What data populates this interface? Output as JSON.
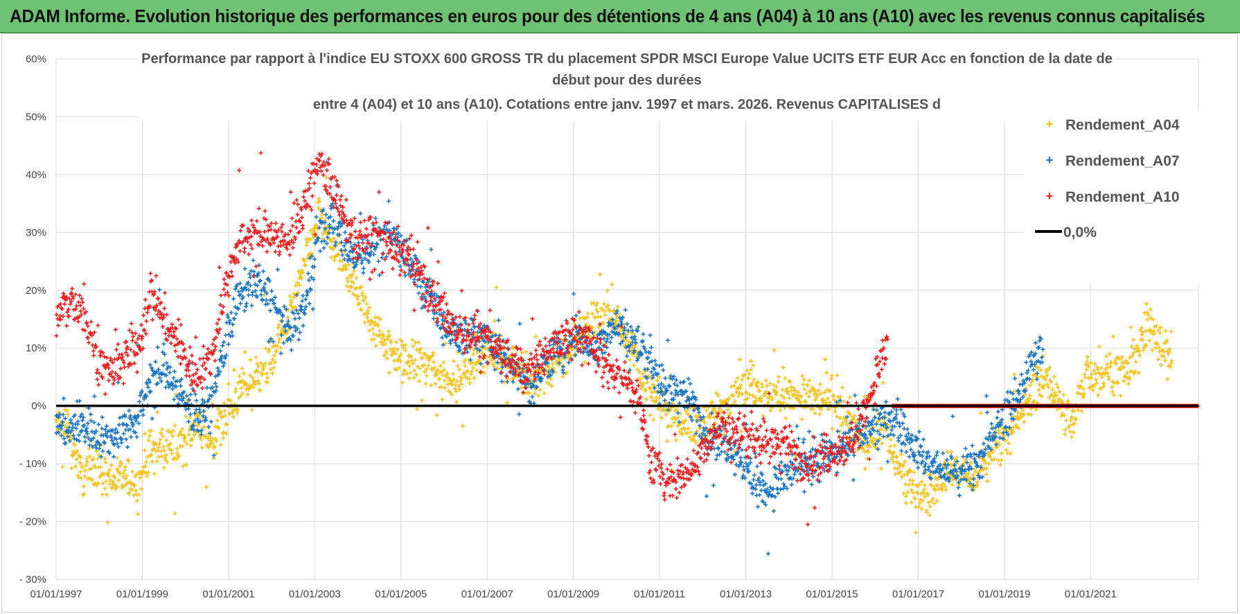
{
  "banner": {
    "title": "ADAM Informe. Evolution historique des performances en euros pour des détentions de 4 ans (A04) à 10 ans (A10) avec les revenus connus capitalisés"
  },
  "chart_data": {
    "type": "scatter",
    "title_lines": [
      "Performance par rapport à l'indice EU STOXX 600 GROSS TR  du placement SPDR MSCI Europe Value UCITS ETF EUR Acc en fonction de la date de",
      "début pour des durées",
      "entre 4 (A04) et 10 ans (A10).  Cotations entre janv. 1997 et mars. 2026. Revenus CAPITALISES d"
    ],
    "xlabel": "",
    "ylabel": "",
    "x_range_years": [
      1997.0,
      2023.5
    ],
    "x_ticks": [
      "01/01/1997",
      "01/01/1999",
      "01/01/2001",
      "01/01/2003",
      "01/01/2005",
      "01/01/2007",
      "01/01/2009",
      "01/01/2011",
      "01/01/2013",
      "01/01/2015",
      "01/01/2017",
      "01/01/2019",
      "01/01/2021"
    ],
    "ylim": [
      -30,
      60
    ],
    "y_ticks": [
      "60%",
      "50%",
      "40%",
      "30%",
      "20%",
      "10%",
      "0%",
      "- 10%",
      "- 20%",
      "- 30%"
    ],
    "grid": true,
    "legend_position": "top-right",
    "series": [
      {
        "name": "Rendement_A04",
        "color": "#f5c31c",
        "marker": "plus",
        "points": [
          [
            1997.0,
            -3
          ],
          [
            1997.3,
            -5
          ],
          [
            1997.6,
            -12
          ],
          [
            1997.9,
            -10
          ],
          [
            1998.2,
            -13
          ],
          [
            1998.5,
            -12
          ],
          [
            1998.9,
            -14
          ],
          [
            1999.2,
            -8
          ],
          [
            1999.5,
            -7
          ],
          [
            1999.9,
            -6
          ],
          [
            2000.2,
            -4
          ],
          [
            2000.6,
            -6
          ],
          [
            2000.9,
            -2
          ],
          [
            2001.2,
            2
          ],
          [
            2001.6,
            5
          ],
          [
            2002.0,
            8
          ],
          [
            2002.4,
            15
          ],
          [
            2002.8,
            25
          ],
          [
            2003.1,
            33
          ],
          [
            2003.4,
            28
          ],
          [
            2003.7,
            24
          ],
          [
            2004.0,
            20
          ],
          [
            2004.4,
            14
          ],
          [
            2004.8,
            9
          ],
          [
            2005.2,
            8
          ],
          [
            2005.6,
            7
          ],
          [
            2006.0,
            5
          ],
          [
            2006.4,
            5
          ],
          [
            2006.8,
            9
          ],
          [
            2007.2,
            10
          ],
          [
            2007.6,
            7
          ],
          [
            2008.0,
            4
          ],
          [
            2008.4,
            6
          ],
          [
            2008.8,
            8
          ],
          [
            2009.1,
            12
          ],
          [
            2009.5,
            15
          ],
          [
            2009.8,
            16
          ],
          [
            2010.1,
            14
          ],
          [
            2010.5,
            8
          ],
          [
            2010.8,
            2
          ],
          [
            2011.1,
            0
          ],
          [
            2011.4,
            -2
          ],
          [
            2011.8,
            -4
          ],
          [
            2012.1,
            -2
          ],
          [
            2012.5,
            -1
          ],
          [
            2012.8,
            4
          ],
          [
            2013.1,
            4
          ],
          [
            2013.5,
            2
          ],
          [
            2013.9,
            2
          ],
          [
            2014.3,
            2
          ],
          [
            2014.7,
            1
          ],
          [
            2015.0,
            1
          ],
          [
            2015.4,
            -3
          ],
          [
            2015.8,
            -7
          ],
          [
            2016.2,
            -3
          ],
          [
            2016.5,
            -10
          ],
          [
            2016.9,
            -15
          ],
          [
            2017.2,
            -15
          ],
          [
            2017.6,
            -12
          ],
          [
            2017.9,
            -11
          ],
          [
            2018.3,
            -13
          ],
          [
            2018.7,
            -8
          ],
          [
            2019.0,
            -5
          ],
          [
            2019.3,
            -3
          ],
          [
            2019.7,
            3
          ],
          [
            2020.0,
            5
          ],
          [
            2020.3,
            0
          ],
          [
            2020.6,
            -3
          ],
          [
            2020.9,
            6
          ],
          [
            2021.2,
            5
          ],
          [
            2021.5,
            7
          ],
          [
            2021.8,
            5
          ],
          [
            2022.1,
            10
          ],
          [
            2022.4,
            14
          ],
          [
            2022.7,
            10
          ],
          [
            2022.9,
            8
          ]
        ]
      },
      {
        "name": "Rendement_A07",
        "color": "#1a74c4",
        "marker": "plus",
        "points": [
          [
            1997.0,
            -3
          ],
          [
            1997.3,
            -4
          ],
          [
            1997.6,
            -3
          ],
          [
            1997.9,
            -5
          ],
          [
            1998.2,
            -6
          ],
          [
            1998.5,
            -4
          ],
          [
            1998.9,
            -2
          ],
          [
            1999.2,
            5
          ],
          [
            1999.5,
            7
          ],
          [
            1999.9,
            2
          ],
          [
            2000.2,
            -2
          ],
          [
            2000.6,
            0
          ],
          [
            2000.9,
            10
          ],
          [
            2001.2,
            18
          ],
          [
            2001.6,
            22
          ],
          [
            2002.0,
            18
          ],
          [
            2002.4,
            12
          ],
          [
            2002.8,
            18
          ],
          [
            2003.1,
            30
          ],
          [
            2003.4,
            32
          ],
          [
            2003.7,
            28
          ],
          [
            2004.0,
            26
          ],
          [
            2004.4,
            28
          ],
          [
            2004.8,
            30
          ],
          [
            2005.2,
            25
          ],
          [
            2005.6,
            20
          ],
          [
            2006.0,
            14
          ],
          [
            2006.4,
            12
          ],
          [
            2006.8,
            12
          ],
          [
            2007.2,
            10
          ],
          [
            2007.6,
            7
          ],
          [
            2008.0,
            3
          ],
          [
            2008.4,
            8
          ],
          [
            2008.8,
            10
          ],
          [
            2009.1,
            12
          ],
          [
            2009.5,
            10
          ],
          [
            2009.8,
            13
          ],
          [
            2010.1,
            14
          ],
          [
            2010.5,
            10
          ],
          [
            2010.8,
            8
          ],
          [
            2011.1,
            2
          ],
          [
            2011.4,
            3
          ],
          [
            2011.8,
            0
          ],
          [
            2012.1,
            -5
          ],
          [
            2012.5,
            -6
          ],
          [
            2012.8,
            -8
          ],
          [
            2013.1,
            -12
          ],
          [
            2013.5,
            -15
          ],
          [
            2013.9,
            -12
          ],
          [
            2014.3,
            -10
          ],
          [
            2014.7,
            -10
          ],
          [
            2015.0,
            -8
          ],
          [
            2015.4,
            -6
          ],
          [
            2015.8,
            -4
          ],
          [
            2016.2,
            -3
          ],
          [
            2016.5,
            -2
          ],
          [
            2016.9,
            -7
          ],
          [
            2017.2,
            -10
          ],
          [
            2017.6,
            -11
          ],
          [
            2017.9,
            -12
          ],
          [
            2018.3,
            -10
          ],
          [
            2018.7,
            -6
          ],
          [
            2019.0,
            -2
          ],
          [
            2019.3,
            1
          ],
          [
            2019.6,
            7
          ],
          [
            2019.9,
            10
          ]
        ]
      },
      {
        "name": "Rendement_A10",
        "color": "#ee1d1d",
        "marker": "plus",
        "points": [
          [
            1997.0,
            15
          ],
          [
            1997.3,
            18
          ],
          [
            1997.6,
            17
          ],
          [
            1997.9,
            10
          ],
          [
            1998.2,
            5
          ],
          [
            1998.5,
            8
          ],
          [
            1998.9,
            10
          ],
          [
            1999.2,
            20
          ],
          [
            1999.5,
            15
          ],
          [
            1999.9,
            10
          ],
          [
            2000.2,
            5
          ],
          [
            2000.6,
            8
          ],
          [
            2000.9,
            20
          ],
          [
            2001.2,
            28
          ],
          [
            2001.6,
            30
          ],
          [
            2002.0,
            30
          ],
          [
            2002.4,
            28
          ],
          [
            2002.8,
            36
          ],
          [
            2003.1,
            42
          ],
          [
            2003.4,
            38
          ],
          [
            2003.7,
            32
          ],
          [
            2004.0,
            28
          ],
          [
            2004.4,
            30
          ],
          [
            2004.8,
            27
          ],
          [
            2005.2,
            26
          ],
          [
            2005.6,
            20
          ],
          [
            2006.0,
            16
          ],
          [
            2006.4,
            13
          ],
          [
            2006.8,
            12
          ],
          [
            2007.2,
            10
          ],
          [
            2007.6,
            8
          ],
          [
            2008.0,
            6
          ],
          [
            2008.4,
            10
          ],
          [
            2008.8,
            12
          ],
          [
            2009.1,
            12
          ],
          [
            2009.5,
            10
          ],
          [
            2009.8,
            7
          ],
          [
            2010.1,
            5
          ],
          [
            2010.5,
            2
          ],
          [
            2010.8,
            -10
          ],
          [
            2011.1,
            -12
          ],
          [
            2011.4,
            -13
          ],
          [
            2011.8,
            -10
          ],
          [
            2012.1,
            -6
          ],
          [
            2012.5,
            -3
          ],
          [
            2012.8,
            -5
          ],
          [
            2013.1,
            -5
          ],
          [
            2013.5,
            -7
          ],
          [
            2013.9,
            -6
          ],
          [
            2014.3,
            -10
          ],
          [
            2014.7,
            -9
          ],
          [
            2015.0,
            -8
          ],
          [
            2015.4,
            -7
          ],
          [
            2015.8,
            0
          ],
          [
            2016.1,
            7
          ],
          [
            2016.3,
            11
          ]
        ],
        "zero_band": [
          2016.4,
          2023.5
        ]
      },
      {
        "name": "0,0%",
        "color": "#000000",
        "marker": "line",
        "value": 0
      }
    ]
  }
}
